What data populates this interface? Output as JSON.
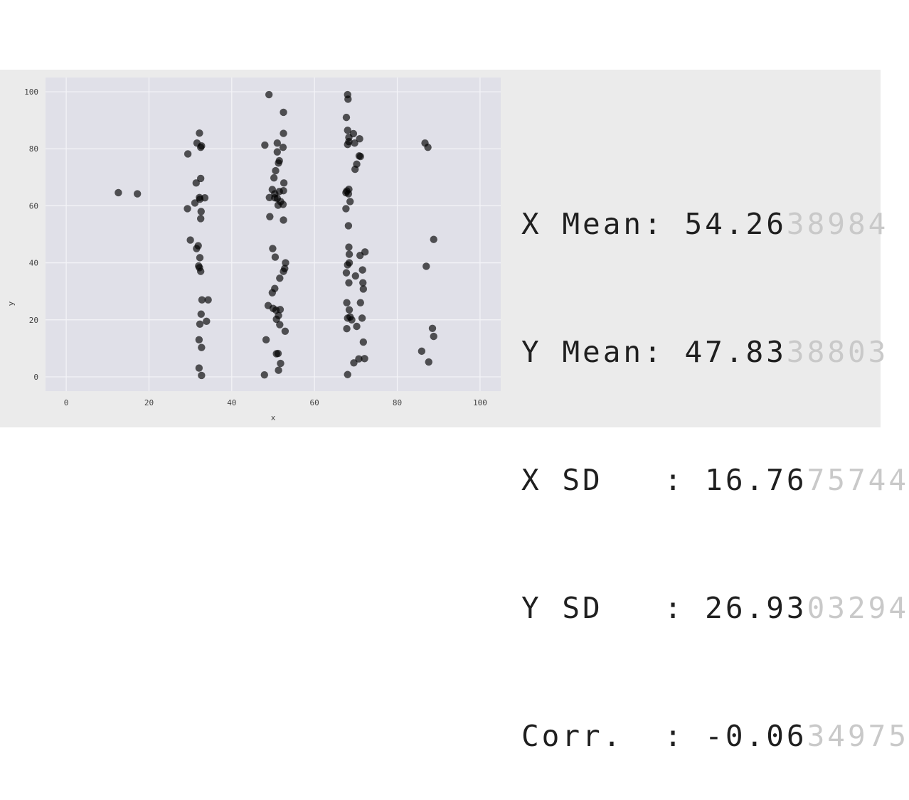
{
  "chart_data": {
    "type": "scatter",
    "xlabel": "x",
    "ylabel": "y",
    "xlim": [
      -5,
      105
    ],
    "ylim": [
      -5,
      105
    ],
    "x_ticks": [
      0,
      20,
      40,
      60,
      80,
      100
    ],
    "y_ticks": [
      0,
      20,
      40,
      60,
      80,
      100
    ],
    "grid": true,
    "marker_color": "#000000",
    "plot_background": "#e0e0e8",
    "points": [
      [
        12.6,
        64.6
      ],
      [
        17.2,
        64.2
      ],
      [
        32.2,
        85.5
      ],
      [
        31.6,
        82.0
      ],
      [
        32.7,
        81.0
      ],
      [
        32.5,
        80.5
      ],
      [
        29.4,
        78.2
      ],
      [
        32.5,
        69.6
      ],
      [
        31.4,
        68.0
      ],
      [
        32.3,
        62.3
      ],
      [
        33.5,
        62.8
      ],
      [
        32.2,
        62.9
      ],
      [
        31.1,
        61.0
      ],
      [
        29.3,
        59.0
      ],
      [
        32.6,
        58.0
      ],
      [
        32.5,
        55.5
      ],
      [
        30.0,
        48.0
      ],
      [
        31.9,
        46.0
      ],
      [
        31.5,
        45.0
      ],
      [
        32.3,
        41.8
      ],
      [
        32.0,
        38.9
      ],
      [
        32.2,
        38.3
      ],
      [
        32.5,
        37.0
      ],
      [
        32.8,
        27.0
      ],
      [
        34.3,
        27.0
      ],
      [
        32.6,
        22.0
      ],
      [
        33.9,
        19.5
      ],
      [
        32.3,
        18.5
      ],
      [
        32.1,
        13.0
      ],
      [
        32.7,
        10.3
      ],
      [
        32.1,
        3.1
      ],
      [
        32.7,
        0.5
      ],
      [
        49.0,
        99.0
      ],
      [
        52.5,
        92.8
      ],
      [
        52.5,
        85.4
      ],
      [
        51.0,
        82.0
      ],
      [
        48.0,
        81.3
      ],
      [
        52.4,
        80.5
      ],
      [
        51.0,
        78.9
      ],
      [
        51.5,
        75.8
      ],
      [
        51.3,
        75.0
      ],
      [
        50.6,
        72.3
      ],
      [
        50.2,
        69.8
      ],
      [
        52.6,
        68.0
      ],
      [
        49.8,
        65.7
      ],
      [
        50.4,
        64.2
      ],
      [
        51.5,
        65.0
      ],
      [
        52.5,
        65.3
      ],
      [
        49.1,
        62.9
      ],
      [
        50.4,
        62.8
      ],
      [
        51.0,
        62.6
      ],
      [
        51.8,
        61.5
      ],
      [
        51.2,
        60.2
      ],
      [
        52.4,
        60.5
      ],
      [
        49.2,
        56.2
      ],
      [
        52.5,
        55.0
      ],
      [
        49.9,
        45.0
      ],
      [
        50.5,
        42.0
      ],
      [
        53.0,
        40.0
      ],
      [
        52.8,
        38.0
      ],
      [
        52.5,
        37.0
      ],
      [
        51.6,
        34.6
      ],
      [
        50.4,
        31.0
      ],
      [
        49.8,
        29.5
      ],
      [
        48.8,
        25.0
      ],
      [
        50.0,
        24.0
      ],
      [
        50.7,
        23.4
      ],
      [
        51.7,
        23.6
      ],
      [
        51.3,
        21.5
      ],
      [
        50.8,
        20.2
      ],
      [
        51.6,
        18.3
      ],
      [
        52.9,
        16.0
      ],
      [
        48.3,
        13.0
      ],
      [
        50.8,
        8.1
      ],
      [
        51.2,
        8.2
      ],
      [
        51.8,
        4.7
      ],
      [
        51.3,
        2.3
      ],
      [
        47.9,
        0.7
      ],
      [
        68.0,
        99.0
      ],
      [
        68.1,
        97.4
      ],
      [
        67.7,
        91.0
      ],
      [
        68.0,
        86.5
      ],
      [
        69.4,
        85.3
      ],
      [
        68.3,
        84.0
      ],
      [
        70.9,
        83.5
      ],
      [
        68.3,
        82.5
      ],
      [
        69.7,
        82.0
      ],
      [
        68.0,
        81.5
      ],
      [
        70.8,
        77.5
      ],
      [
        71.1,
        77.3
      ],
      [
        70.2,
        74.6
      ],
      [
        69.8,
        72.8
      ],
      [
        68.3,
        65.8
      ],
      [
        67.8,
        65.2
      ],
      [
        67.6,
        64.6
      ],
      [
        68.2,
        64.2
      ],
      [
        68.6,
        61.5
      ],
      [
        67.6,
        59.0
      ],
      [
        68.2,
        53.0
      ],
      [
        68.3,
        45.5
      ],
      [
        72.2,
        43.8
      ],
      [
        68.4,
        43.0
      ],
      [
        71.0,
        42.6
      ],
      [
        68.4,
        40.0
      ],
      [
        68.0,
        39.3
      ],
      [
        71.6,
        37.5
      ],
      [
        67.7,
        36.5
      ],
      [
        69.9,
        35.4
      ],
      [
        71.7,
        33.0
      ],
      [
        68.3,
        33.0
      ],
      [
        71.8,
        30.8
      ],
      [
        67.8,
        26.0
      ],
      [
        71.1,
        26.0
      ],
      [
        68.4,
        23.5
      ],
      [
        68.6,
        21.0
      ],
      [
        68.0,
        20.6
      ],
      [
        71.5,
        20.6
      ],
      [
        69.0,
        20.0
      ],
      [
        70.2,
        17.7
      ],
      [
        67.8,
        16.9
      ],
      [
        71.8,
        12.2
      ],
      [
        70.7,
        6.3
      ],
      [
        72.1,
        6.4
      ],
      [
        69.5,
        4.9
      ],
      [
        68.0,
        0.8
      ],
      [
        86.7,
        82.0
      ],
      [
        87.4,
        80.5
      ],
      [
        88.8,
        48.2
      ],
      [
        87.0,
        38.8
      ],
      [
        88.5,
        17.0
      ],
      [
        88.8,
        14.2
      ],
      [
        85.9,
        9.0
      ],
      [
        87.6,
        5.2
      ]
    ]
  },
  "stats": [
    {
      "label": "X Mean: ",
      "shown": "54.26",
      "faded": "38984"
    },
    {
      "label": "Y Mean: ",
      "shown": "47.83",
      "faded": "38803"
    },
    {
      "label": "X SD   : ",
      "shown": "16.76",
      "faded": "75744"
    },
    {
      "label": "Y SD   : ",
      "shown": "26.93",
      "faded": "03294"
    },
    {
      "label": "Corr.  : ",
      "shown": "-0.06",
      "faded": "34975"
    }
  ]
}
